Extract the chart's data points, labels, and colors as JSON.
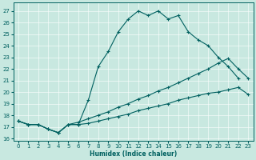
{
  "xlabel": "Humidex (Indice chaleur)",
  "bg_color": "#c8e8e0",
  "line_color": "#006060",
  "xlim": [
    -0.5,
    23.5
  ],
  "ylim": [
    15.8,
    27.7
  ],
  "yticks": [
    16,
    17,
    18,
    19,
    20,
    21,
    22,
    23,
    24,
    25,
    26,
    27
  ],
  "xticks": [
    0,
    1,
    2,
    3,
    4,
    5,
    6,
    7,
    8,
    9,
    10,
    11,
    12,
    13,
    14,
    15,
    16,
    17,
    18,
    19,
    20,
    21,
    22,
    23
  ],
  "line1_x": [
    0,
    1,
    2,
    3,
    4,
    5,
    6,
    7,
    8,
    9,
    10,
    11,
    12,
    13,
    14,
    15,
    16,
    17,
    18,
    19,
    20,
    21,
    22
  ],
  "line1_y": [
    17.5,
    17.2,
    17.2,
    16.8,
    16.5,
    17.2,
    17.2,
    19.3,
    22.2,
    23.5,
    25.2,
    26.3,
    27.0,
    26.6,
    27.0,
    26.3,
    26.6,
    25.2,
    24.5,
    24.0,
    23.0,
    22.2,
    21.2
  ],
  "line2_x": [
    0,
    1,
    2,
    3,
    4,
    5,
    6,
    7,
    8,
    9,
    10,
    11,
    12,
    13,
    14,
    15,
    16,
    17,
    18,
    19,
    20,
    21,
    22,
    23
  ],
  "line2_y": [
    17.5,
    17.2,
    17.2,
    16.8,
    16.5,
    17.2,
    17.4,
    17.7,
    18.0,
    18.3,
    18.7,
    19.0,
    19.4,
    19.7,
    20.1,
    20.4,
    20.8,
    21.2,
    21.6,
    22.0,
    22.5,
    22.9,
    22.0,
    21.2
  ],
  "line3_x": [
    0,
    1,
    2,
    3,
    4,
    5,
    6,
    7,
    8,
    9,
    10,
    11,
    12,
    13,
    14,
    15,
    16,
    17,
    18,
    19,
    20,
    21,
    22,
    23
  ],
  "line3_y": [
    17.5,
    17.2,
    17.2,
    16.8,
    16.5,
    17.2,
    17.2,
    17.3,
    17.5,
    17.7,
    17.9,
    18.1,
    18.4,
    18.6,
    18.8,
    19.0,
    19.3,
    19.5,
    19.7,
    19.9,
    20.0,
    20.2,
    20.4,
    19.8
  ]
}
